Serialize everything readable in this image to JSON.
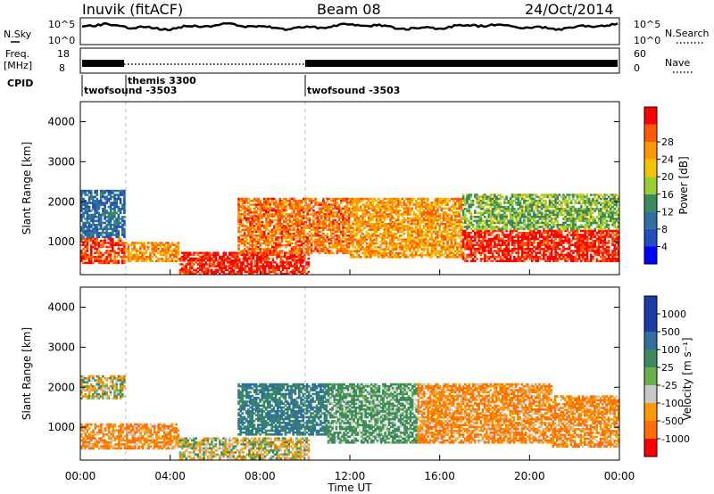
{
  "header": {
    "site": "Inuvik (fitACF)",
    "beam": "Beam 08",
    "date": "24/Oct/2014"
  },
  "noise_panel": {
    "left_label": "N.Sky",
    "right_label": "N.Search",
    "left_ticks": [
      "10^5",
      "10^0"
    ],
    "right_ticks": [
      "10^5",
      "10^0"
    ]
  },
  "freq_panel": {
    "left_label_1": "Freq.",
    "left_label_2": "[MHz]",
    "right_label": "Nave",
    "left_ticks": [
      "18",
      "8"
    ],
    "right_ticks": [
      "60",
      "0"
    ]
  },
  "cpid": {
    "label": "CPID",
    "segments": [
      {
        "name": "twofsound -3503",
        "start_hour": 0
      },
      {
        "name": "themis 3300",
        "start_hour": 1.9
      },
      {
        "name": "twofsound -3503",
        "start_hour": 10.0
      }
    ]
  },
  "x_axis": {
    "label": "Time UT",
    "ticks": [
      "00:00",
      "04:00",
      "08:00",
      "12:00",
      "16:00",
      "20:00",
      "00:00"
    ],
    "range_hours": [
      0,
      24
    ]
  },
  "power_panel": {
    "ylabel": "Slant Range [km]",
    "yticks": [
      "1000",
      "2000",
      "3000",
      "4000"
    ],
    "colorbar_label": "Power [dB]",
    "colorbar_ticks": [
      "4",
      "8",
      "12",
      "16",
      "20",
      "24",
      "28"
    ]
  },
  "velocity_panel": {
    "ylabel": "Slant Range [km]",
    "yticks": [
      "1000",
      "2000",
      "3000",
      "4000"
    ],
    "colorbar_label": "Velocity [m s⁻¹]",
    "colorbar_ticks": [
      "1000",
      "500",
      "100",
      "25",
      "-25",
      "-100",
      "-500",
      "-1000"
    ]
  },
  "colors": {
    "power_scale": [
      "#0000ff",
      "#1f4fbf",
      "#2f6f9f",
      "#3a8a5a",
      "#9acd32",
      "#f5c400",
      "#ff9900",
      "#ff5a00",
      "#ff0000"
    ],
    "velocity_scale": [
      "#1a3ca6",
      "#2f6f9f",
      "#3a8a5a",
      "#6ab04c",
      "#c8c8c8",
      "#ff9900",
      "#ff6f00",
      "#ff0000"
    ]
  },
  "chart_data": {
    "type": "heatmap",
    "x_unit": "hours UT",
    "y_unit": "km",
    "xlim": [
      0,
      24
    ],
    "ylim": [
      180,
      4500
    ],
    "power_scatter_regions": [
      {
        "t0": 0.0,
        "t1": 2.0,
        "r0": 450,
        "r1": 1100,
        "value_db": 26
      },
      {
        "t0": 0.0,
        "t1": 2.0,
        "r0": 1100,
        "r1": 2300,
        "value_db": 8
      },
      {
        "t0": 2.0,
        "t1": 4.4,
        "r0": 500,
        "r1": 1000,
        "value_db": 22
      },
      {
        "t0": 4.4,
        "t1": 10.2,
        "r0": 180,
        "r1": 750,
        "value_db": 28
      },
      {
        "t0": 7.0,
        "t1": 12.0,
        "r0": 700,
        "r1": 2100,
        "value_db": 24
      },
      {
        "t0": 12.0,
        "t1": 17.0,
        "r0": 600,
        "r1": 2100,
        "value_db": 22
      },
      {
        "t0": 17.0,
        "t1": 24.0,
        "r0": 500,
        "r1": 1300,
        "value_db": 28
      },
      {
        "t0": 17.0,
        "t1": 24.0,
        "r0": 1300,
        "r1": 2200,
        "value_db": 14
      }
    ],
    "velocity_scatter_regions": [
      {
        "t0": 0.0,
        "t1": 4.4,
        "r0": 450,
        "r1": 1100,
        "value_ms": -100
      },
      {
        "t0": 0.0,
        "t1": 2.0,
        "r0": 1700,
        "r1": 2300,
        "value_ms": 0
      },
      {
        "t0": 4.4,
        "t1": 10.2,
        "r0": 200,
        "r1": 750,
        "value_ms": 0
      },
      {
        "t0": 7.0,
        "t1": 11.0,
        "r0": 800,
        "r1": 2100,
        "value_ms": 300
      },
      {
        "t0": 11.0,
        "t1": 15.0,
        "r0": 600,
        "r1": 2100,
        "value_ms": 100
      },
      {
        "t0": 15.0,
        "t1": 21.0,
        "r0": 600,
        "r1": 2100,
        "value_ms": -100
      },
      {
        "t0": 21.0,
        "t1": 24.0,
        "r0": 500,
        "r1": 1800,
        "value_ms": -100
      }
    ]
  }
}
